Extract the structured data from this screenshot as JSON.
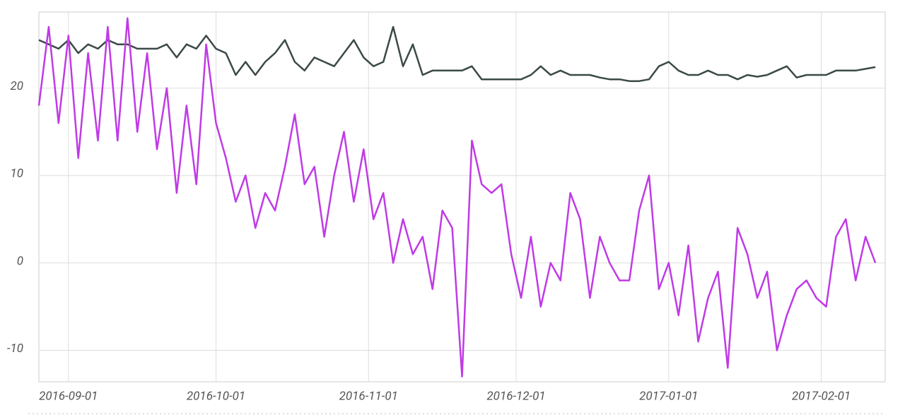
{
  "chart_data": {
    "type": "line",
    "x": [
      "2016-08-26",
      "2016-08-28",
      "2016-08-30",
      "2016-09-01",
      "2016-09-03",
      "2016-09-05",
      "2016-09-07",
      "2016-09-09",
      "2016-09-11",
      "2016-09-13",
      "2016-09-15",
      "2016-09-17",
      "2016-09-19",
      "2016-09-21",
      "2016-09-23",
      "2016-09-25",
      "2016-09-27",
      "2016-09-29",
      "2016-10-01",
      "2016-10-03",
      "2016-10-05",
      "2016-10-07",
      "2016-10-09",
      "2016-10-11",
      "2016-10-13",
      "2016-10-15",
      "2016-10-17",
      "2016-10-19",
      "2016-10-21",
      "2016-10-23",
      "2016-10-25",
      "2016-10-27",
      "2016-10-29",
      "2016-10-31",
      "2016-11-02",
      "2016-11-04",
      "2016-11-06",
      "2016-11-08",
      "2016-11-10",
      "2016-11-12",
      "2016-11-14",
      "2016-11-16",
      "2016-11-18",
      "2016-11-20",
      "2016-11-22",
      "2016-11-24",
      "2016-11-26",
      "2016-11-28",
      "2016-11-30",
      "2016-12-02",
      "2016-12-04",
      "2016-12-06",
      "2016-12-08",
      "2016-12-10",
      "2016-12-12",
      "2016-12-14",
      "2016-12-16",
      "2016-12-18",
      "2016-12-20",
      "2016-12-22",
      "2016-12-24",
      "2016-12-26",
      "2016-12-28",
      "2016-12-30",
      "2017-01-01",
      "2017-01-03",
      "2017-01-05",
      "2017-01-07",
      "2017-01-09",
      "2017-01-11",
      "2017-01-13",
      "2017-01-15",
      "2017-01-17",
      "2017-01-19",
      "2017-01-21",
      "2017-01-23",
      "2017-01-25",
      "2017-01-27",
      "2017-01-29",
      "2017-01-31",
      "2017-02-02",
      "2017-02-04",
      "2017-02-06",
      "2017-02-08",
      "2017-02-10",
      "2017-02-12"
    ],
    "series": [
      {
        "color": "#3b4a47",
        "values": [
          25.5,
          25,
          24.5,
          25.5,
          24,
          25,
          24.5,
          25.5,
          25,
          25,
          24.5,
          24.5,
          24.5,
          25,
          23.5,
          25,
          24.5,
          26,
          24.5,
          24,
          21.5,
          23,
          21.5,
          23,
          24,
          25.5,
          23,
          22,
          23.5,
          23,
          22.5,
          24,
          25.5,
          23.5,
          22.5,
          23,
          27,
          22.5,
          25,
          21.5,
          22,
          22,
          22,
          22,
          22.5,
          21,
          21,
          21,
          21,
          21,
          21.5,
          22.5,
          21.5,
          22,
          21.5,
          21.5,
          21.5,
          21.2,
          21,
          21,
          20.8,
          20.8,
          21,
          22.5,
          23,
          22,
          21.5,
          21.5,
          22,
          21.5,
          21.5,
          21,
          21.5,
          21.3,
          21.5,
          22,
          22.5,
          21.2,
          21.5,
          21.5,
          21.5,
          22,
          22,
          22,
          22.2,
          22.4
        ]
      },
      {
        "color": "#c03ae6",
        "values": [
          18,
          27,
          16,
          26,
          12,
          24,
          14,
          27,
          14,
          28,
          15,
          24,
          13,
          20,
          8,
          18,
          9,
          25,
          16,
          12,
          7,
          10,
          4,
          8,
          6,
          11,
          17,
          9,
          11,
          3,
          10,
          15,
          7,
          13,
          5,
          8,
          0,
          5,
          1,
          3,
          -3,
          6,
          4,
          -13,
          14,
          9,
          8,
          9,
          1,
          -4,
          3,
          -5,
          0,
          -2,
          8,
          5,
          -4,
          3,
          0,
          -2,
          -2,
          6,
          10,
          -3,
          0,
          -6,
          2,
          -9,
          -4,
          -1,
          -12,
          4,
          1,
          -4,
          -1,
          -10,
          -6,
          -3,
          -2,
          -4,
          -5,
          3,
          5,
          -2,
          3,
          0
        ]
      }
    ],
    "xlim": [
      "2016-08-26",
      "2017-02-14"
    ],
    "xticks": [
      "2016-09-01",
      "2016-10-01",
      "2016-11-01",
      "2016-12-01",
      "2017-01-01",
      "2017-02-01"
    ],
    "ylim": [
      -13.6,
      28.7
    ],
    "yticks": [
      -10,
      0,
      10,
      20
    ],
    "grid": true
  }
}
